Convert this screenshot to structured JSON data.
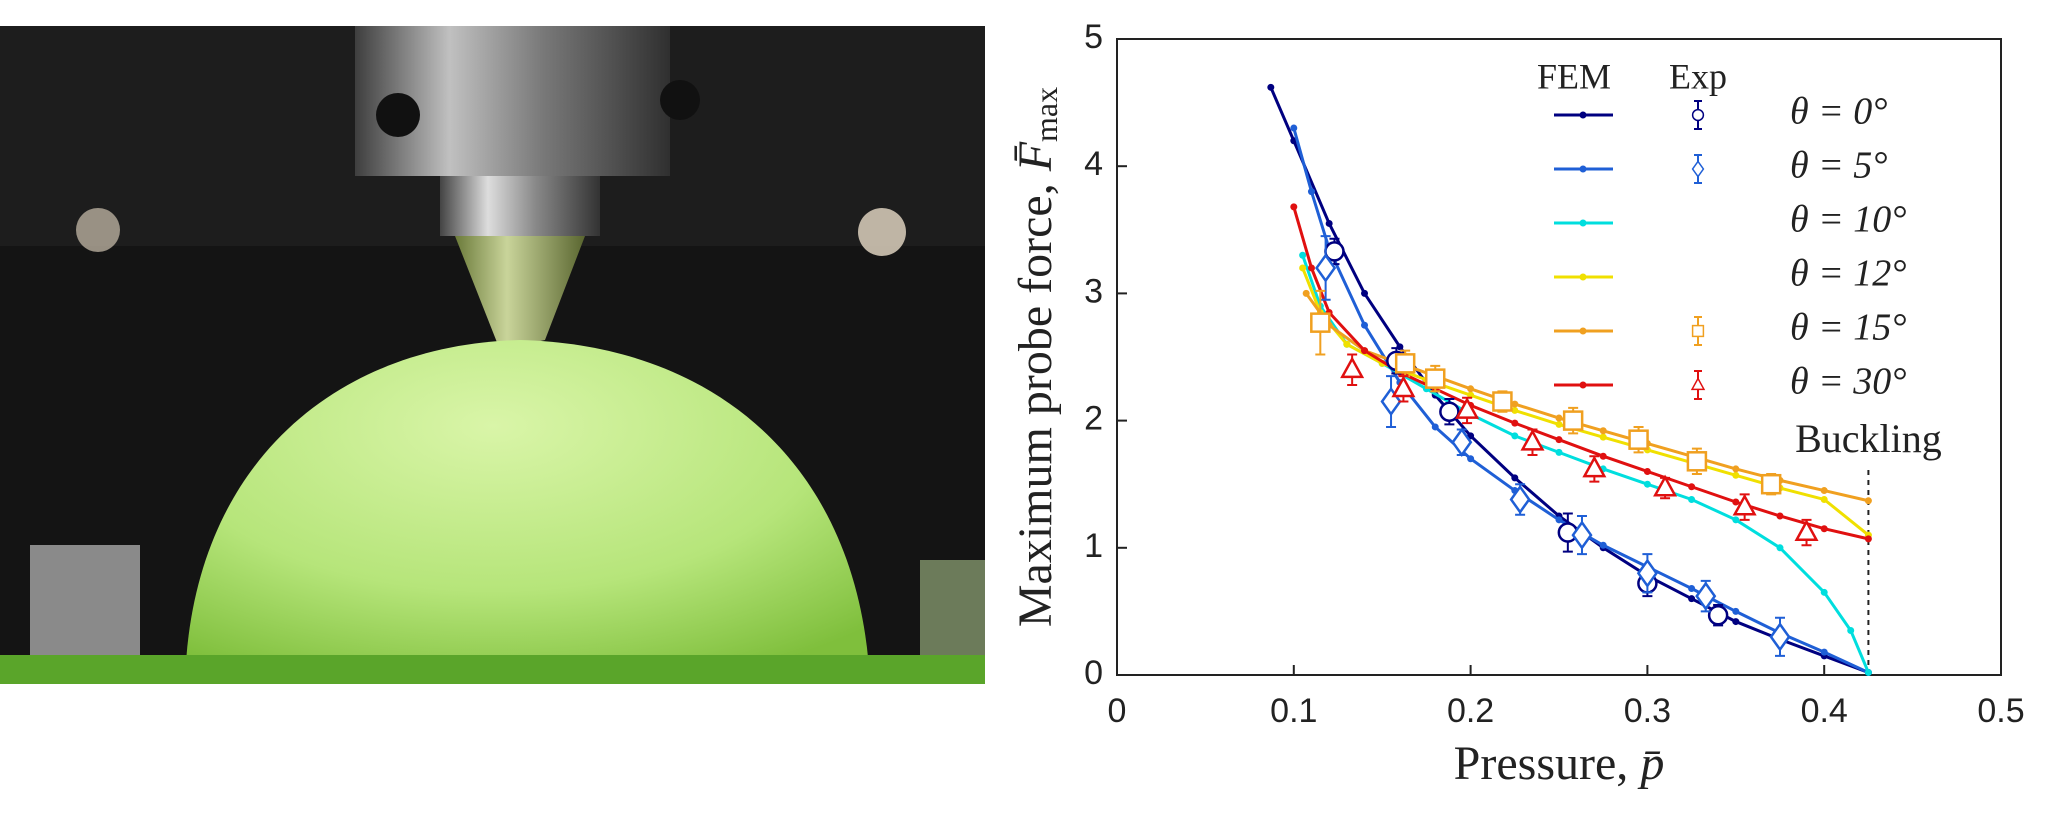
{
  "chart_data": {
    "type": "line",
    "x_label": "Pressure,",
    "x_symbol": "p̄",
    "y_label": "Maximum probe force,",
    "y_symbol": "F̄",
    "y_symbol_sub": "max",
    "legend_headers": [
      "FEM",
      "Exp"
    ],
    "annotation": {
      "text": "Buckling",
      "x": 0.425
    },
    "xlim": [
      0,
      0.5
    ],
    "xticks": [
      0,
      0.1,
      0.2,
      0.3,
      0.4,
      0.5
    ],
    "ylim": [
      0,
      5
    ],
    "yticks": [
      0,
      1,
      2,
      3,
      4,
      5
    ],
    "series": [
      {
        "name": "θ = 0°",
        "color": "#000080",
        "marker": "circle",
        "x": [
          0.087,
          0.1,
          0.12,
          0.14,
          0.16,
          0.18,
          0.2,
          0.225,
          0.25,
          0.275,
          0.3,
          0.325,
          0.35,
          0.375,
          0.4,
          0.425
        ],
        "values": [
          4.62,
          4.2,
          3.55,
          3.0,
          2.58,
          2.2,
          1.88,
          1.55,
          1.25,
          1.0,
          0.78,
          0.6,
          0.42,
          0.28,
          0.15,
          0.02
        ],
        "exp": {
          "x": [
            0.123,
            0.158,
            0.188,
            0.255,
            0.3,
            0.34
          ],
          "values": [
            3.33,
            2.47,
            2.07,
            1.12,
            0.72,
            0.47
          ],
          "errors": [
            0.1,
            0.1,
            0.1,
            0.15,
            0.1,
            0.08
          ]
        }
      },
      {
        "name": "θ = 5°",
        "color": "#1f5fd6",
        "marker": "diamond",
        "x": [
          0.1,
          0.11,
          0.12,
          0.14,
          0.16,
          0.18,
          0.2,
          0.225,
          0.25,
          0.275,
          0.3,
          0.325,
          0.35,
          0.375,
          0.4,
          0.425
        ],
        "values": [
          4.3,
          3.8,
          3.35,
          2.75,
          2.3,
          1.95,
          1.7,
          1.45,
          1.22,
          1.02,
          0.85,
          0.68,
          0.5,
          0.33,
          0.18,
          0.02
        ],
        "exp": {
          "x": [
            0.118,
            0.155,
            0.195,
            0.228,
            0.263,
            0.3,
            0.333,
            0.375
          ],
          "values": [
            3.2,
            2.15,
            1.83,
            1.38,
            1.1,
            0.8,
            0.62,
            0.3
          ],
          "errors": [
            0.25,
            0.2,
            0.1,
            0.12,
            0.15,
            0.15,
            0.12,
            0.15
          ]
        }
      },
      {
        "name": "θ = 10°",
        "color": "#00dede",
        "marker": "circle",
        "x": [
          0.105,
          0.115,
          0.13,
          0.15,
          0.175,
          0.2,
          0.225,
          0.25,
          0.275,
          0.3,
          0.325,
          0.35,
          0.375,
          0.4,
          0.415,
          0.425
        ],
        "values": [
          3.3,
          2.9,
          2.6,
          2.45,
          2.25,
          2.05,
          1.88,
          1.75,
          1.62,
          1.5,
          1.38,
          1.22,
          1.0,
          0.65,
          0.35,
          0.02
        ]
      },
      {
        "name": "θ = 12°",
        "color": "#f0e000",
        "marker": "circle",
        "x": [
          0.105,
          0.115,
          0.13,
          0.15,
          0.175,
          0.2,
          0.225,
          0.25,
          0.275,
          0.3,
          0.325,
          0.35,
          0.375,
          0.4,
          0.425
        ],
        "values": [
          3.2,
          2.85,
          2.6,
          2.45,
          2.32,
          2.2,
          2.08,
          1.97,
          1.87,
          1.77,
          1.67,
          1.57,
          1.47,
          1.38,
          1.1
        ]
      },
      {
        "name": "θ = 15°",
        "color": "#f0a020",
        "marker": "square",
        "x": [
          0.107,
          0.12,
          0.14,
          0.16,
          0.18,
          0.2,
          0.225,
          0.25,
          0.275,
          0.3,
          0.325,
          0.35,
          0.375,
          0.4,
          0.425
        ],
        "values": [
          3.0,
          2.75,
          2.55,
          2.45,
          2.35,
          2.25,
          2.13,
          2.02,
          1.92,
          1.82,
          1.72,
          1.62,
          1.53,
          1.45,
          1.37
        ],
        "exp": {
          "x": [
            0.115,
            0.163,
            0.18,
            0.218,
            0.258,
            0.295,
            0.328,
            0.37
          ],
          "values": [
            2.77,
            2.45,
            2.33,
            2.15,
            2.0,
            1.85,
            1.68,
            1.5
          ],
          "errors": [
            0.25,
            0.1,
            0.1,
            0.08,
            0.1,
            0.1,
            0.1,
            0.08
          ]
        }
      },
      {
        "name": "θ = 30°",
        "color": "#e01010",
        "marker": "triangle",
        "x": [
          0.1,
          0.11,
          0.12,
          0.14,
          0.16,
          0.18,
          0.2,
          0.225,
          0.25,
          0.275,
          0.3,
          0.325,
          0.35,
          0.375,
          0.4,
          0.425
        ],
        "values": [
          3.68,
          3.2,
          2.85,
          2.55,
          2.38,
          2.25,
          2.12,
          1.98,
          1.85,
          1.72,
          1.6,
          1.48,
          1.36,
          1.25,
          1.15,
          1.07
        ],
        "exp": {
          "x": [
            0.133,
            0.162,
            0.198,
            0.235,
            0.27,
            0.31,
            0.355,
            0.39
          ],
          "values": [
            2.4,
            2.25,
            2.08,
            1.83,
            1.62,
            1.47,
            1.32,
            1.12
          ],
          "errors": [
            0.12,
            0.1,
            0.1,
            0.1,
            0.1,
            0.08,
            0.1,
            0.1
          ]
        }
      }
    ]
  }
}
